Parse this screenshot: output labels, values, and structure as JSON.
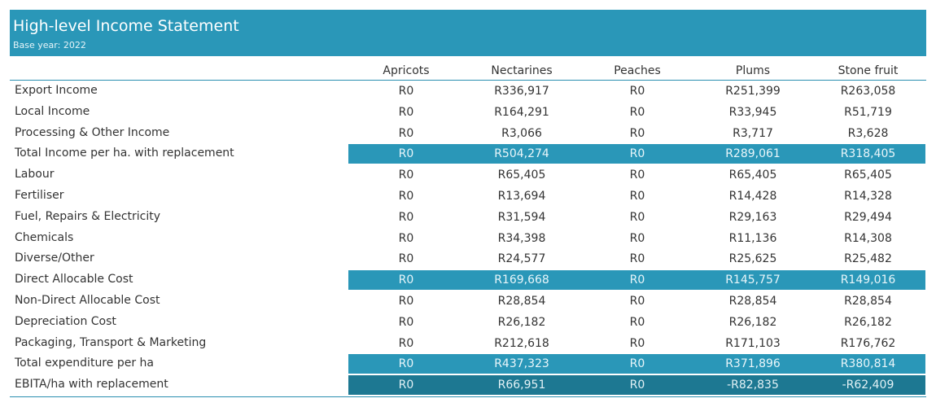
{
  "header": {
    "title": "High-level Income Statement",
    "subtitle": "Base year: 2022"
  },
  "columns": [
    "Apricots",
    "Nectarines",
    "Peaches",
    "Plums",
    "Stone fruit"
  ],
  "rows": [
    {
      "label": "Export Income",
      "values": [
        "R0",
        "R336,917",
        "R0",
        "R251,399",
        "R263,058"
      ]
    },
    {
      "label": "Local Income",
      "values": [
        "R0",
        "R164,291",
        "R0",
        "R33,945",
        "R51,719"
      ]
    },
    {
      "label": "Processing & Other Income",
      "values": [
        "R0",
        "R3,066",
        "R0",
        "R3,717",
        "R3,628"
      ]
    },
    {
      "label": "Total Income per ha. with replacement",
      "values": [
        "R0",
        "R504,274",
        "R0",
        "R289,061",
        "R318,405"
      ]
    },
    {
      "label": "Labour",
      "values": [
        "R0",
        "R65,405",
        "R0",
        "R65,405",
        "R65,405"
      ]
    },
    {
      "label": "Fertiliser",
      "values": [
        "R0",
        "R13,694",
        "R0",
        "R14,428",
        "R14,328"
      ]
    },
    {
      "label": "Fuel, Repairs & Electricity",
      "values": [
        "R0",
        "R31,594",
        "R0",
        "R29,163",
        "R29,494"
      ]
    },
    {
      "label": "Chemicals",
      "values": [
        "R0",
        "R34,398",
        "R0",
        "R11,136",
        "R14,308"
      ]
    },
    {
      "label": "Diverse/Other",
      "values": [
        "R0",
        "R24,577",
        "R0",
        "R25,625",
        "R25,482"
      ]
    },
    {
      "label": "Direct Allocable Cost",
      "values": [
        "R0",
        "R169,668",
        "R0",
        "R145,757",
        "R149,016"
      ]
    },
    {
      "label": "Non-Direct Allocable Cost",
      "values": [
        "R0",
        "R28,854",
        "R0",
        "R28,854",
        "R28,854"
      ]
    },
    {
      "label": "Depreciation Cost",
      "values": [
        "R0",
        "R26,182",
        "R0",
        "R26,182",
        "R26,182"
      ]
    },
    {
      "label": "Packaging, Transport & Marketing",
      "values": [
        "R0",
        "R212,618",
        "R0",
        "R171,103",
        "R176,762"
      ]
    },
    {
      "label": "Total expenditure per ha",
      "values": [
        "R0",
        "R437,323",
        "R0",
        "R371,896",
        "R380,814"
      ]
    },
    {
      "label": "EBITA/ha with replacement",
      "values": [
        "R0",
        "R66,951",
        "R0",
        "-R82,835",
        "-R62,409"
      ]
    }
  ],
  "colors": {
    "header_band": "#2a97b8",
    "highlight_row": "#2a97b8",
    "highlight_row_dark": "#1d7892",
    "rule_line": "#2a8fb0"
  }
}
